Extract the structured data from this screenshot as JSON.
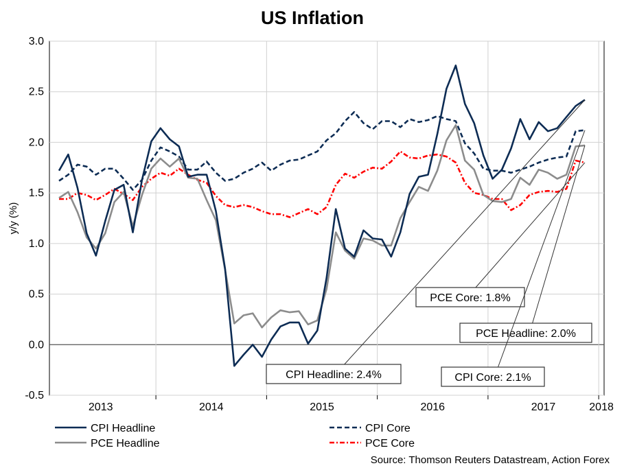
{
  "chart_data": {
    "type": "line",
    "title": "US Inflation",
    "ylabel": "y/y (%)",
    "xlabel": "",
    "ylim": [
      -0.5,
      3.0
    ],
    "yticks": [
      "3.0",
      "2.5",
      "2.0",
      "1.5",
      "1.0",
      "0.5",
      "0.0",
      "-0.5"
    ],
    "ytick_values": [
      3.0,
      2.5,
      2.0,
      1.5,
      1.0,
      0.5,
      0.0,
      -0.5
    ],
    "year_labels": [
      "2013",
      "2014",
      "2015",
      "2016",
      "2017",
      "2018"
    ],
    "x_start": "2013-02",
    "grid": true,
    "series": [
      {
        "name": "CPI Headline",
        "style": "solid",
        "color": "#0d2c54",
        "values": [
          1.72,
          1.88,
          1.55,
          1.1,
          0.88,
          1.22,
          1.53,
          1.58,
          1.11,
          1.63,
          2.01,
          2.14,
          2.03,
          1.96,
          1.66,
          1.68,
          1.68,
          1.32,
          0.75,
          -0.21,
          -0.1,
          0.0,
          -0.12,
          0.05,
          0.18,
          0.22,
          0.22,
          0.01,
          0.14,
          0.66,
          1.34,
          0.95,
          0.87,
          1.13,
          1.05,
          1.04,
          0.87,
          1.11,
          1.49,
          1.66,
          1.68,
          2.08,
          2.53,
          2.76,
          2.38,
          2.19,
          1.87,
          1.64,
          1.73,
          1.94,
          2.23,
          2.03,
          2.2,
          2.11,
          2.14,
          2.25,
          2.36,
          2.42
        ]
      },
      {
        "name": "CPI Core",
        "style": "dashed",
        "color": "#0d2c54",
        "values": [
          1.62,
          1.68,
          1.78,
          1.76,
          1.68,
          1.74,
          1.74,
          1.64,
          1.53,
          1.63,
          1.82,
          1.95,
          1.91,
          1.86,
          1.73,
          1.73,
          1.81,
          1.7,
          1.62,
          1.64,
          1.7,
          1.74,
          1.8,
          1.72,
          1.78,
          1.82,
          1.83,
          1.87,
          1.91,
          2.02,
          2.09,
          2.21,
          2.3,
          2.19,
          2.13,
          2.21,
          2.21,
          2.15,
          2.23,
          2.2,
          2.22,
          2.26,
          2.23,
          2.21,
          1.99,
          1.89,
          1.74,
          1.72,
          1.72,
          1.7,
          1.73,
          1.76,
          1.8,
          1.83,
          1.85,
          1.86,
          2.11,
          2.12
        ]
      },
      {
        "name": "PCE Headline",
        "style": "solid",
        "color": "#8c8c8c",
        "values": [
          1.45,
          1.51,
          1.31,
          1.06,
          0.95,
          1.1,
          1.41,
          1.51,
          1.17,
          1.48,
          1.74,
          1.84,
          1.76,
          1.84,
          1.65,
          1.64,
          1.43,
          1.23,
          0.74,
          0.21,
          0.29,
          0.31,
          0.17,
          0.27,
          0.34,
          0.32,
          0.33,
          0.2,
          0.24,
          0.55,
          1.11,
          0.93,
          0.85,
          1.05,
          1.03,
          0.98,
          0.98,
          1.25,
          1.41,
          1.56,
          1.52,
          1.72,
          2.02,
          2.17,
          1.82,
          1.73,
          1.48,
          1.42,
          1.41,
          1.44,
          1.65,
          1.58,
          1.73,
          1.7,
          1.64,
          1.68,
          1.96,
          1.97
        ]
      },
      {
        "name": "PCE Core",
        "style": "dashdot",
        "color": "#ff0000",
        "values": [
          1.44,
          1.44,
          1.5,
          1.48,
          1.43,
          1.48,
          1.54,
          1.49,
          1.43,
          1.56,
          1.64,
          1.7,
          1.67,
          1.74,
          1.68,
          1.63,
          1.6,
          1.47,
          1.38,
          1.36,
          1.38,
          1.36,
          1.32,
          1.29,
          1.29,
          1.26,
          1.3,
          1.34,
          1.29,
          1.36,
          1.58,
          1.69,
          1.65,
          1.71,
          1.75,
          1.74,
          1.81,
          1.91,
          1.85,
          1.84,
          1.87,
          1.88,
          1.86,
          1.8,
          1.6,
          1.5,
          1.48,
          1.44,
          1.44,
          1.33,
          1.38,
          1.48,
          1.51,
          1.52,
          1.51,
          1.54,
          1.82,
          1.8
        ]
      }
    ],
    "annotations": [
      {
        "text": "PCE Core: 1.8%",
        "series": "PCE Core"
      },
      {
        "text": "PCE Headline: 2.0%",
        "series": "PCE Headline"
      },
      {
        "text": "CPI Headline: 2.4%",
        "series": "CPI Headline"
      },
      {
        "text": "CPI Core: 2.1%",
        "series": "CPI Core"
      }
    ],
    "legend": {
      "placement": "bottom",
      "entries": [
        "CPI Headline",
        "CPI Core",
        "PCE Headline",
        "PCE Core"
      ]
    },
    "source": "Source: Thomson Reuters Datastream, Action Forex"
  }
}
